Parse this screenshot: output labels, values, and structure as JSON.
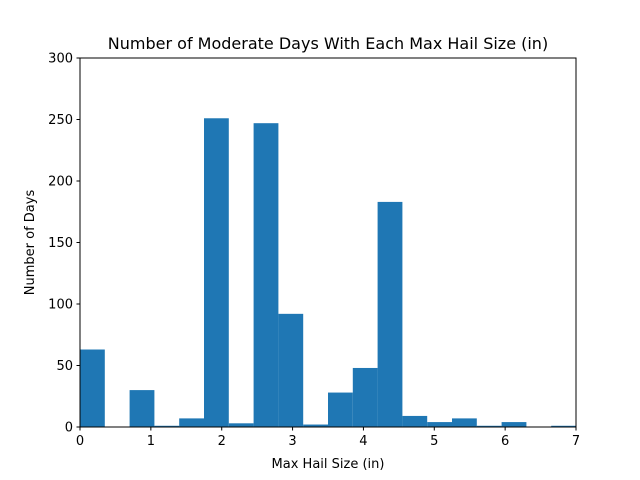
{
  "chart_data": {
    "type": "bar",
    "title": "Number of Moderate Days With Each Max Hail Size (in)",
    "xlabel": "Max Hail Size (in)",
    "ylabel": "Number of Days",
    "xlim": [
      0,
      7
    ],
    "ylim": [
      0,
      300
    ],
    "x_ticks": [
      0,
      1,
      2,
      3,
      4,
      5,
      6,
      7
    ],
    "y_ticks": [
      0,
      50,
      100,
      150,
      200,
      250,
      300
    ],
    "grid": false,
    "bar_color": "#1f77b4",
    "bin_width": 0.35,
    "bins": [
      {
        "start": 0.0,
        "end": 0.35,
        "value": 63
      },
      {
        "start": 0.35,
        "end": 0.7,
        "value": 0
      },
      {
        "start": 0.7,
        "end": 1.05,
        "value": 30
      },
      {
        "start": 1.05,
        "end": 1.4,
        "value": 1
      },
      {
        "start": 1.4,
        "end": 1.75,
        "value": 7
      },
      {
        "start": 1.75,
        "end": 2.1,
        "value": 251
      },
      {
        "start": 2.1,
        "end": 2.45,
        "value": 3
      },
      {
        "start": 2.45,
        "end": 2.8,
        "value": 247
      },
      {
        "start": 2.8,
        "end": 3.15,
        "value": 92
      },
      {
        "start": 3.15,
        "end": 3.5,
        "value": 2
      },
      {
        "start": 3.5,
        "end": 3.85,
        "value": 28
      },
      {
        "start": 3.85,
        "end": 4.2,
        "value": 48
      },
      {
        "start": 4.2,
        "end": 4.55,
        "value": 183
      },
      {
        "start": 4.55,
        "end": 4.9,
        "value": 9
      },
      {
        "start": 4.9,
        "end": 5.25,
        "value": 4
      },
      {
        "start": 5.25,
        "end": 5.6,
        "value": 7
      },
      {
        "start": 5.6,
        "end": 5.95,
        "value": 1
      },
      {
        "start": 5.95,
        "end": 6.3,
        "value": 4
      },
      {
        "start": 6.3,
        "end": 6.65,
        "value": 0
      },
      {
        "start": 6.65,
        "end": 7.0,
        "value": 1
      }
    ]
  }
}
